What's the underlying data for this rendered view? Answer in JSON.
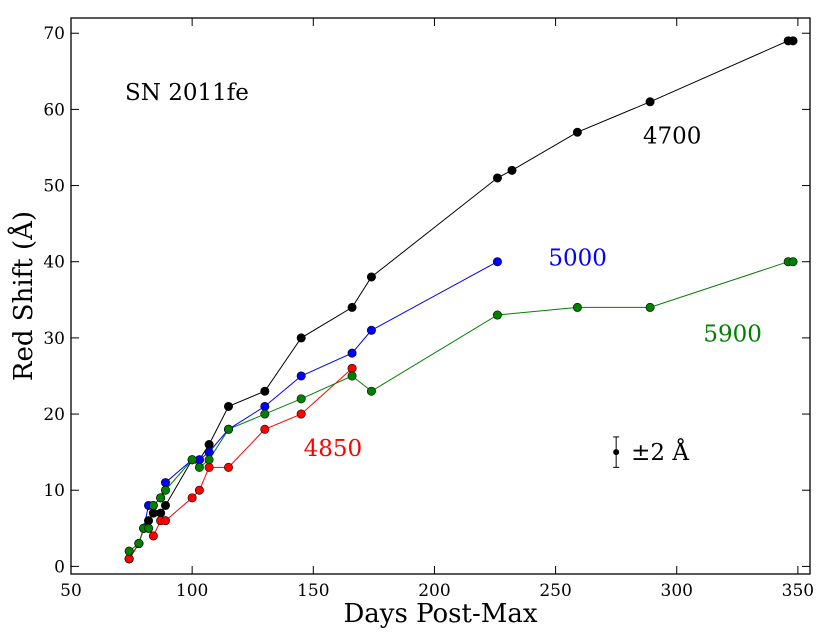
{
  "chart_data": {
    "type": "line",
    "title": "",
    "annotation": "SN 2011fe",
    "xlabel": "Days Post-Max",
    "ylabel": "Red Shift (Å)",
    "xlim": [
      50,
      355
    ],
    "ylim": [
      -1,
      72
    ],
    "xticks": [
      50,
      100,
      150,
      200,
      250,
      300,
      350
    ],
    "yticks": [
      0,
      10,
      20,
      30,
      40,
      50,
      60,
      70
    ],
    "grid": false,
    "error_bar": {
      "x": 275,
      "y": 15,
      "err": 2,
      "label": "±2 Å"
    },
    "series": [
      {
        "name": "4700",
        "color": "#000000",
        "label_pos": [
          286,
          55.5
        ],
        "x": [
          74,
          78,
          80,
          82,
          84,
          87,
          89,
          100,
          103,
          107,
          115,
          130,
          145,
          166,
          174,
          226,
          232,
          259,
          289,
          346,
          348
        ],
        "y": [
          1,
          3,
          5,
          6,
          7,
          7,
          8,
          14,
          14,
          16,
          21,
          23,
          30,
          34,
          38,
          51,
          52,
          57,
          61,
          69,
          69
        ]
      },
      {
        "name": "5000",
        "color": "#0000ff",
        "label_pos": [
          247,
          39.5
        ],
        "x": [
          74,
          78,
          80,
          82,
          84,
          87,
          89,
          100,
          103,
          107,
          115,
          130,
          145,
          166,
          174,
          226
        ],
        "y": [
          1,
          3,
          5,
          8,
          8,
          9,
          11,
          14,
          14,
          15,
          18,
          21,
          25,
          28,
          31,
          40
        ]
      },
      {
        "name": "4850",
        "color": "#ff0000",
        "label_pos": [
          146,
          14.5
        ],
        "x": [
          74,
          78,
          80,
          82,
          84,
          87,
          89,
          100,
          103,
          107,
          115,
          130,
          145,
          166
        ],
        "y": [
          1,
          3,
          5,
          5,
          4,
          6,
          6,
          9,
          10,
          13,
          13,
          18,
          20,
          26
        ]
      },
      {
        "name": "5900",
        "color": "#008000",
        "label_pos": [
          311,
          29.5
        ],
        "x": [
          74,
          78,
          80,
          82,
          84,
          87,
          89,
          100,
          103,
          107,
          115,
          130,
          145,
          166,
          174,
          226,
          259,
          289,
          346,
          348
        ],
        "y": [
          2,
          3,
          5,
          5,
          8,
          9,
          10,
          14,
          13,
          14,
          18,
          20,
          22,
          25,
          23,
          33,
          34,
          34,
          40,
          40
        ]
      }
    ]
  }
}
